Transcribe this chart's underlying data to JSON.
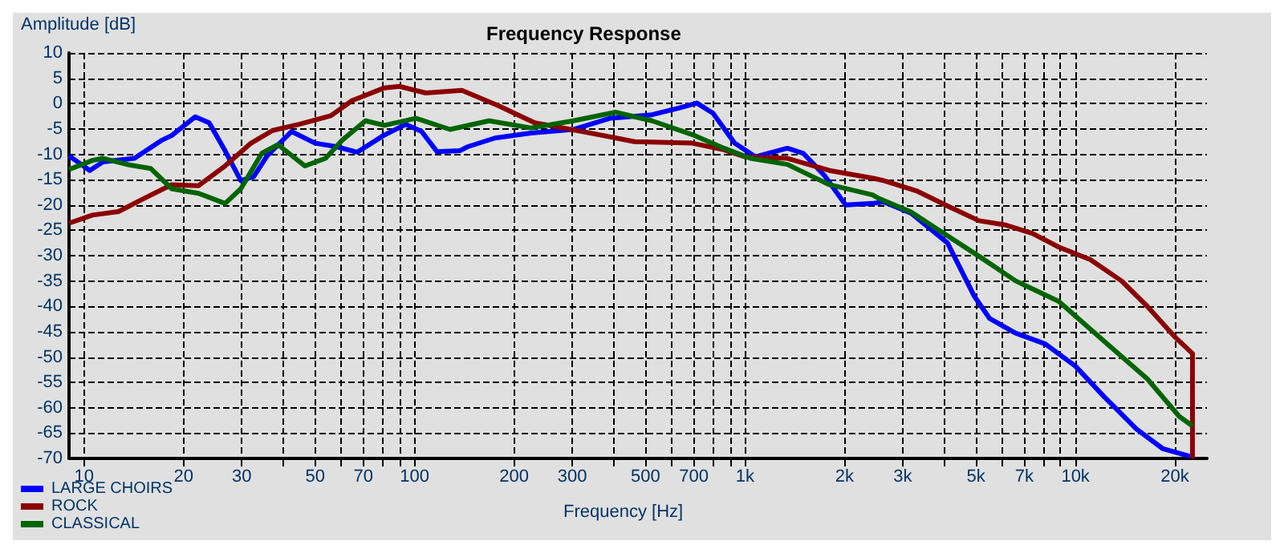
{
  "chart_data": {
    "type": "line",
    "title": "Frequency Response",
    "xlabel": "Frequency [Hz]",
    "ylabel": "Amplitude [dB]",
    "log": "x",
    "xlim": [
      9,
      25000
    ],
    "ylim": [
      -70,
      10
    ],
    "xticks": [
      10,
      20,
      30,
      {
        "value": 40,
        "label": null
      },
      50,
      {
        "value": 60,
        "label": null
      },
      70,
      {
        "value": 80,
        "label": null
      },
      {
        "value": 90,
        "label": null
      },
      100,
      200,
      300,
      {
        "value": 400,
        "label": null
      },
      500,
      {
        "value": 600,
        "label": null
      },
      700,
      {
        "value": 800,
        "label": null
      },
      {
        "value": 900,
        "label": null
      },
      {
        "value": 1000,
        "label": "1k"
      },
      {
        "value": 2000,
        "label": "2k"
      },
      {
        "value": 3000,
        "label": "3k"
      },
      {
        "value": 4000,
        "label": null
      },
      {
        "value": 5000,
        "label": "5k"
      },
      {
        "value": 6000,
        "label": null
      },
      {
        "value": 7000,
        "label": "7k"
      },
      {
        "value": 8000,
        "label": null
      },
      {
        "value": 9000,
        "label": null
      },
      {
        "value": 10000,
        "label": "10k"
      },
      {
        "value": 20000,
        "label": "20k"
      }
    ],
    "yticks": [
      -70,
      -65,
      -60,
      -55,
      -50,
      -45,
      -40,
      -35,
      -30,
      -25,
      -20,
      -15,
      -10,
      -5,
      0,
      5,
      10
    ],
    "grid": true,
    "legend": "bottom left",
    "marker": "none",
    "line_style": "solid",
    "series": [
      {
        "name": "LARGE CHOIRS",
        "color": "#0000ff",
        "x": [
          9,
          10.4,
          11.4,
          14.2,
          17.1,
          18.4,
          21.7,
          23.9,
          26.7,
          29.8,
          32.6,
          35.8,
          42.4,
          50,
          58,
          67,
          80.5,
          94,
          105,
          117,
          137,
          145,
          175,
          225,
          302,
          390,
          523,
          630,
          715,
          800,
          930,
          1076,
          1343,
          1500,
          1740,
          2016,
          2430,
          2630,
          3180,
          4100,
          4930,
          5500,
          6600,
          8100,
          10000,
          12200,
          15300,
          18400,
          22200
        ],
        "values": [
          -10.3,
          -13.2,
          -11.5,
          -10.8,
          -7.3,
          -6.3,
          -2.6,
          -3.8,
          -9.3,
          -15.2,
          -14.4,
          -10.3,
          -5.5,
          -7.8,
          -8.5,
          -9.6,
          -6.3,
          -4.1,
          -5.5,
          -9.5,
          -9.3,
          -8.5,
          -6.8,
          -5.8,
          -5.1,
          -2.9,
          -2.2,
          -0.9,
          0.1,
          -1.9,
          -7.8,
          -10.5,
          -8.8,
          -9.8,
          -14.2,
          -20,
          -19.7,
          -19.4,
          -21.6,
          -27.5,
          -37.9,
          -42.4,
          -45.3,
          -47.4,
          -51.8,
          -57.8,
          -64.2,
          -68.1,
          -69.6
        ]
      },
      {
        "name": "ROCK",
        "color": "#8b0000",
        "x": [
          9,
          10.6,
          12.7,
          15.3,
          18.4,
          22.2,
          26.7,
          32,
          37.2,
          44.7,
          55.8,
          64.7,
          81,
          90,
          108,
          139,
          179,
          231,
          321,
          463,
          691,
          863,
          1000,
          1343,
          1800,
          2430,
          2630,
          3300,
          4100,
          5100,
          6100,
          7400,
          8900,
          11100,
          13800,
          16500,
          19900,
          22600,
          22600
        ],
        "values": [
          -23.6,
          -22,
          -21.3,
          -18.6,
          -16,
          -16.2,
          -12.3,
          -7.8,
          -5.3,
          -4.1,
          -2.4,
          0.6,
          3.1,
          3.4,
          2.1,
          2.6,
          -0.4,
          -3.8,
          -5.5,
          -7.5,
          -7.8,
          -9.1,
          -10.5,
          -10.8,
          -13.2,
          -14.7,
          -15.2,
          -17.2,
          -20.2,
          -23.1,
          -23.9,
          -25.6,
          -28.3,
          -30.8,
          -35,
          -40,
          -45.9,
          -49.3,
          -70
        ]
      },
      {
        "name": "CLASSICAL",
        "color": "#006400",
        "x": [
          9,
          10.6,
          11.4,
          13.7,
          15.9,
          18.4,
          22.2,
          26.7,
          29.8,
          34.5,
          38.6,
          46.6,
          53.8,
          60.2,
          71,
          81,
          101,
          128,
          168,
          225,
          302,
          405,
          523,
          691,
          863,
          1038,
          1343,
          1800,
          2430,
          2540,
          3180,
          4100,
          5100,
          6600,
          8900,
          10200,
          13100,
          16500,
          20600,
          22600
        ],
        "values": [
          -13,
          -11.2,
          -10.8,
          -12.1,
          -12.8,
          -16.8,
          -17.7,
          -19.7,
          -16.8,
          -9.8,
          -8.1,
          -12.3,
          -10.8,
          -7.3,
          -3.4,
          -4.3,
          -2.9,
          -5.1,
          -3.4,
          -4.8,
          -3.4,
          -1.7,
          -3.4,
          -6.1,
          -8.8,
          -10.8,
          -12,
          -16,
          -18,
          -18.7,
          -21.4,
          -26.1,
          -30.1,
          -35,
          -39,
          -42.4,
          -48.6,
          -54.3,
          -61.7,
          -63.6
        ]
      }
    ]
  }
}
